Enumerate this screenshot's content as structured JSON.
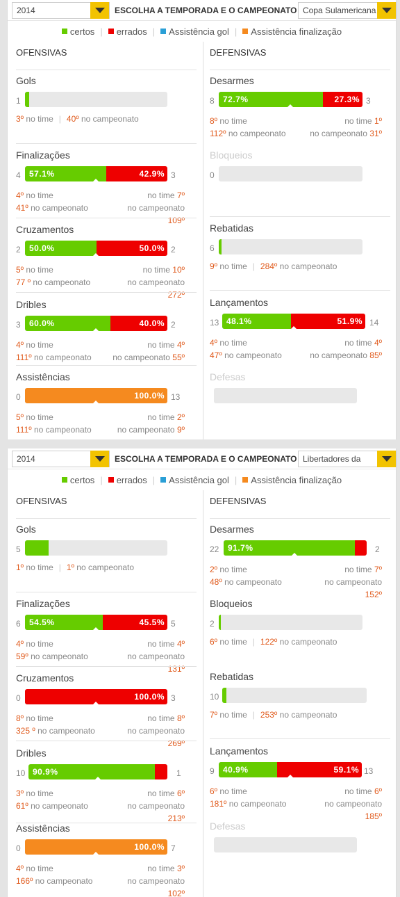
{
  "header": {
    "title": "ESCOLHA A TEMPORADA E O CAMPEONATO"
  },
  "legend": {
    "items": [
      {
        "label": "certos",
        "color": "#66cc00"
      },
      {
        "label": "errados",
        "color": "#ee0000"
      },
      {
        "label": "Assistência gol",
        "color": "#2a9fd6"
      },
      {
        "label": "Assistência finalização",
        "color": "#f58a1f"
      }
    ]
  },
  "labels": {
    "ofensivas": "OFENSIVAS",
    "defensivas": "DEFENSIVAS",
    "no_time": "no time",
    "no_camp": "no campeonato"
  },
  "panels": [
    {
      "season": "2014",
      "competition": "Copa Sulamericana",
      "off": {
        "gols": {
          "name": "Gols",
          "left": "1",
          "time_rank": "3º",
          "camp_rank": "40º",
          "fill": 0.03
        },
        "finalizacoes": {
          "name": "Finalizações",
          "left": "4",
          "right": "3",
          "lpct": "57.1%",
          "rpct": "42.9%",
          "l_time": "4º",
          "l_camp": "41º",
          "r_time": "7º",
          "r_camp": "109º"
        },
        "cruzamentos": {
          "name": "Cruzamentos",
          "left": "2",
          "right": "2",
          "lpct": "50.0%",
          "rpct": "50.0%",
          "l_time": "5º",
          "l_camp": "77 º",
          "r_time": "10º",
          "r_camp": "272º"
        },
        "dribles": {
          "name": "Dribles",
          "left": "3",
          "right": "2",
          "lpct": "60.0%",
          "rpct": "40.0%",
          "l_time": "4º",
          "l_camp": "111º",
          "r_time": "4º",
          "r_camp": "55º"
        },
        "assistencias": {
          "name": "Assistências",
          "left": "0",
          "right": "13",
          "rpct": "100.0%",
          "l_time": "5º",
          "l_camp": "111º",
          "r_time": "2º",
          "r_camp": "9º"
        }
      },
      "def": {
        "desarmes": {
          "name": "Desarmes",
          "left": "8",
          "right": "3",
          "lpct": "72.7%",
          "rpct": "27.3%",
          "l_time": "8º",
          "l_camp": "112º",
          "r_time": "1º",
          "r_camp": "31º"
        },
        "bloqueios": {
          "name": "Bloqueios",
          "left": "0"
        },
        "rebatidas": {
          "name": "Rebatidas",
          "left": "6",
          "time_rank": "9º",
          "camp_rank": "284º",
          "fill": 0.02
        },
        "lancamentos": {
          "name": "Lançamentos",
          "left": "13",
          "right": "14",
          "lpct": "48.1%",
          "rpct": "51.9%",
          "l_time": "4º",
          "l_camp": "47º",
          "r_time": "4º",
          "r_camp": "85º"
        },
        "defesas": {
          "name": "Defesas"
        }
      }
    },
    {
      "season": "2014",
      "competition": "Libertadores da",
      "off": {
        "gols": {
          "name": "Gols",
          "left": "5",
          "time_rank": "1º",
          "camp_rank": "1º",
          "fill": 0.17
        },
        "finalizacoes": {
          "name": "Finalizações",
          "left": "6",
          "right": "5",
          "lpct": "54.5%",
          "rpct": "45.5%",
          "l_time": "4º",
          "l_camp": "59º",
          "r_time": "4º",
          "r_camp": "131º"
        },
        "cruzamentos": {
          "name": "Cruzamentos",
          "left": "0",
          "right": "3",
          "rpct": "100.0%",
          "l_time": "8º",
          "l_camp": "325 º",
          "r_time": "8º",
          "r_camp": "269º"
        },
        "dribles": {
          "name": "Dribles",
          "left": "10",
          "right": "1",
          "lpct": "90.9%",
          "l_time": "3º",
          "l_camp": "61º",
          "r_time": "6º",
          "r_camp": "213º"
        },
        "assistencias": {
          "name": "Assistências",
          "left": "0",
          "right": "7",
          "rpct": "100.0%",
          "l_time": "4º",
          "l_camp": "166º",
          "r_time": "3º",
          "r_camp": "102º"
        }
      },
      "def": {
        "desarmes": {
          "name": "Desarmes",
          "left": "22",
          "right": "2",
          "lpct": "91.7%",
          "l_time": "2º",
          "l_camp": "48º",
          "r_time": "7º",
          "r_camp": "152º"
        },
        "bloqueios": {
          "name": "Bloqueios",
          "left": "2",
          "time_rank": "6º",
          "camp_rank": "122º",
          "fill": 0.01
        },
        "rebatidas": {
          "name": "Rebatidas",
          "left": "10",
          "time_rank": "7º",
          "camp_rank": "253º",
          "fill": 0.03
        },
        "lancamentos": {
          "name": "Lançamentos",
          "left": "9",
          "right": "13",
          "lpct": "40.9%",
          "rpct": "59.1%",
          "l_time": "6º",
          "l_camp": "181º",
          "r_time": "6º",
          "r_camp": "185º"
        },
        "defesas": {
          "name": "Defesas"
        }
      }
    }
  ]
}
